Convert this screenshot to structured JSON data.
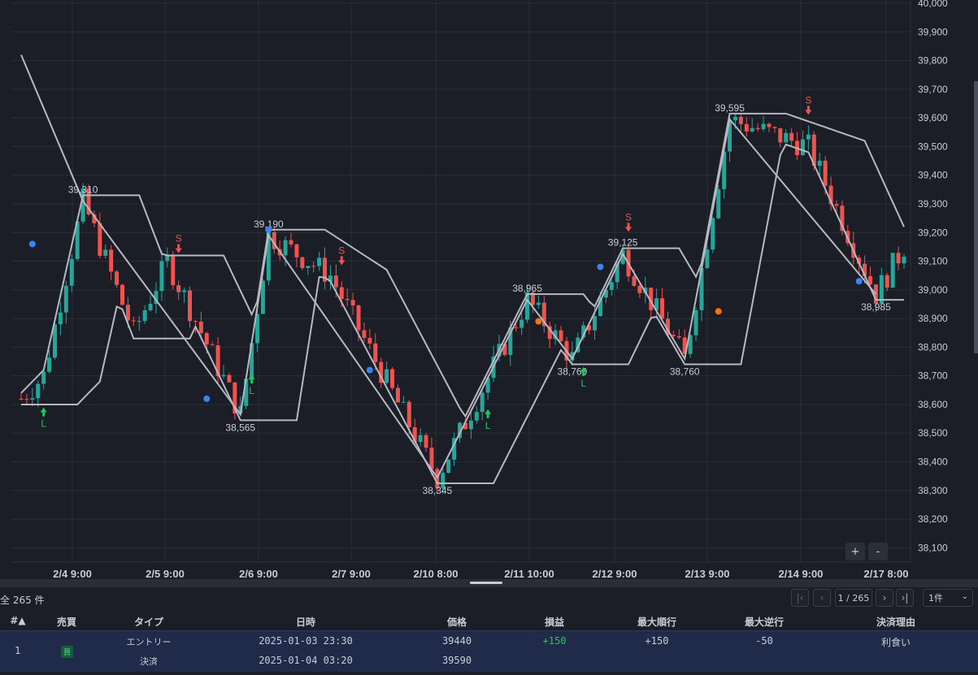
{
  "chart": {
    "price_axis": {
      "min": 38050,
      "max": 40000,
      "ticks": [
        "38,100",
        "38,200",
        "38,300",
        "38,400",
        "38,500",
        "38,600",
        "38,700",
        "38,800",
        "38,900",
        "39,000",
        "39,100",
        "39,200",
        "39,300",
        "39,400",
        "39,500",
        "39,600",
        "39,700",
        "39,800",
        "39,900",
        "40,000"
      ]
    },
    "time_axis": {
      "ticks": [
        "2/4 9:00",
        "2/5 9:00",
        "2/6 9:00",
        "2/7 9:00",
        "2/10 8:00",
        "2/11 10:00",
        "2/12 9:00",
        "2/13 9:00",
        "2/14 9:00",
        "2/17 8:00"
      ]
    },
    "swing_labels": [
      {
        "text": "39,310",
        "value": 39310,
        "bar": 11
      },
      {
        "text": "38,565",
        "value": 38565,
        "bar": 39
      },
      {
        "text": "39,190",
        "value": 39190,
        "bar": 44
      },
      {
        "text": "38,345",
        "value": 38345,
        "bar": 74
      },
      {
        "text": "38,965",
        "value": 38965,
        "bar": 90
      },
      {
        "text": "38,760",
        "value": 38760,
        "bar": 98
      },
      {
        "text": "39,125",
        "value": 39125,
        "bar": 107
      },
      {
        "text": "38,760",
        "value": 38760,
        "bar": 118
      },
      {
        "text": "39,595",
        "value": 39595,
        "bar": 126
      },
      {
        "text": "38,985",
        "value": 38985,
        "bar": 152
      }
    ],
    "signals": [
      {
        "type": "long",
        "bar": 4,
        "label": "L"
      },
      {
        "type": "short",
        "bar": 28,
        "label": "S"
      },
      {
        "type": "long",
        "bar": 41,
        "label": "L"
      },
      {
        "type": "short",
        "bar": 57,
        "label": "S"
      },
      {
        "type": "long",
        "bar": 83,
        "label": "L"
      },
      {
        "type": "long",
        "bar": 100,
        "label": "L"
      },
      {
        "type": "short",
        "bar": 108,
        "label": "S"
      },
      {
        "type": "short",
        "bar": 140,
        "label": "S"
      }
    ],
    "colors": {
      "up": "#26a69a",
      "down": "#ef5350",
      "line": "#b6b9c1",
      "grid": "#2a2e39",
      "marker_blue": "#3b82f6",
      "marker_orange": "#f97316",
      "long": "#22c55e",
      "short": "#ef5350"
    },
    "zoom_in_label": "+",
    "zoom_out_label": "-"
  },
  "table": {
    "total": "全 265 件",
    "page": "1 / 265",
    "per_page": "1件",
    "headers": {
      "index": "#▲",
      "side": "売買",
      "type": "タイプ",
      "datetime": "日時",
      "price": "価格",
      "pnl": "損益",
      "max_fav": "最大順行",
      "max_adv": "最大逆行",
      "reason": "決済理由"
    },
    "rows": [
      {
        "index": "1",
        "side": "買",
        "entry_type": "エントリー",
        "exit_type": "決済",
        "entry_time": "2025-01-03 23:30",
        "exit_time": "2025-01-04 03:20",
        "entry_price": "39440",
        "exit_price": "39590",
        "pnl": "+150",
        "max_fav": "+150",
        "max_adv": "-50",
        "reason": "利食い"
      }
    ]
  }
}
